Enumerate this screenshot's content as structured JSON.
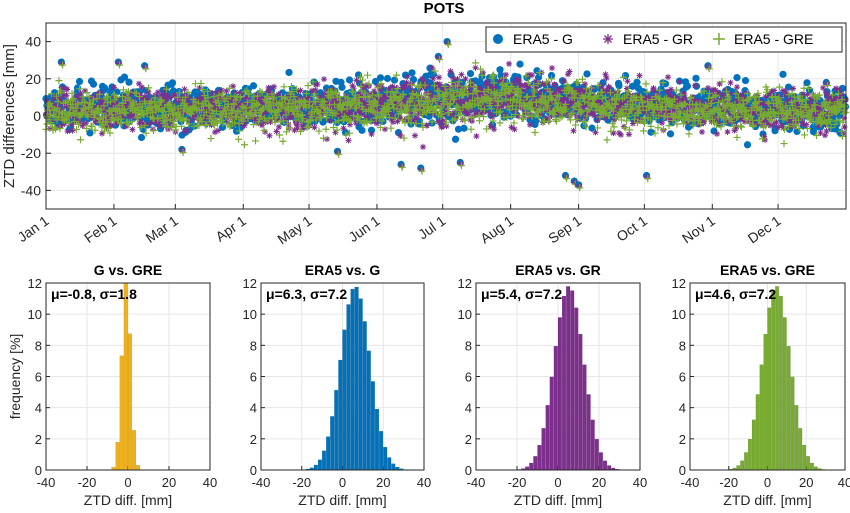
{
  "title": "POTS",
  "colors": {
    "G": "#0072BD",
    "GR": "#7E2F8E",
    "GRE": "#77AC30",
    "G_vs_GRE": "#EDB120",
    "axis": "#262626",
    "grid": "#e6e6e6"
  },
  "chart_data": [
    {
      "type": "scatter",
      "title": "POTS",
      "ylabel": "ZTD differences [mm]",
      "xlabel": "",
      "ylim": [
        -50,
        50
      ],
      "yticks": [
        -40,
        -20,
        0,
        20,
        40
      ],
      "xlim": [
        0,
        365
      ],
      "xticks": [
        {
          "label": "Jan 1",
          "day": 0
        },
        {
          "label": "Feb 1",
          "day": 31
        },
        {
          "label": "Mar 1",
          "day": 59
        },
        {
          "label": "Apr 1",
          "day": 90
        },
        {
          "label": "May 1",
          "day": 120
        },
        {
          "label": "Jun 1",
          "day": 151
        },
        {
          "label": "Jul 1",
          "day": 181
        },
        {
          "label": "Aug 1",
          "day": 212
        },
        {
          "label": "Sep 1",
          "day": 243
        },
        {
          "label": "Oct 1",
          "day": 273
        },
        {
          "label": "Nov 1",
          "day": 304
        },
        {
          "label": "Dec 1",
          "day": 334
        }
      ],
      "grid": true,
      "legend_position": "top-right",
      "series": [
        {
          "name": "ERA5 - G",
          "marker": "circle",
          "color": "#0072BD",
          "mean": 6.3,
          "std": 7.2
        },
        {
          "name": "ERA5 - GR",
          "marker": "asterisk",
          "color": "#7E2F8E",
          "mean": 5.4,
          "std": 7.2
        },
        {
          "name": "ERA5 - GRE",
          "marker": "plus",
          "color": "#77AC30",
          "mean": 4.6,
          "std": 7.2
        }
      ],
      "extremes": [
        {
          "day": 7,
          "y": 29
        },
        {
          "day": 33,
          "y": 29
        },
        {
          "day": 45,
          "y": 27
        },
        {
          "day": 62,
          "y": -18
        },
        {
          "day": 133,
          "y": -19
        },
        {
          "day": 162,
          "y": -26
        },
        {
          "day": 171,
          "y": -28
        },
        {
          "day": 179,
          "y": 32
        },
        {
          "day": 183,
          "y": 40
        },
        {
          "day": 189,
          "y": -25
        },
        {
          "day": 237,
          "y": -32
        },
        {
          "day": 241,
          "y": -35
        },
        {
          "day": 243,
          "y": -37
        },
        {
          "day": 274,
          "y": -32
        },
        {
          "day": 302,
          "y": 27
        },
        {
          "day": 356,
          "y": 18
        }
      ]
    },
    {
      "type": "bar",
      "title": "G vs. GRE",
      "annotation": "μ=-0.8, σ=1.8",
      "mean": -0.8,
      "std": 1.8,
      "color": "#EDB120",
      "xlabel": "ZTD diff. [mm]",
      "ylabel": "frequency [%]",
      "xlim": [
        -40,
        40
      ],
      "ylim": [
        0,
        12
      ],
      "xticks": [
        -40,
        -20,
        0,
        20,
        40
      ],
      "yticks": [
        0,
        2,
        4,
        6,
        8,
        10,
        12
      ],
      "bin_width": 2
    },
    {
      "type": "bar",
      "title": "ERA5 vs. G",
      "annotation": "μ=6.3, σ=7.2",
      "mean": 6.3,
      "std": 7.2,
      "color": "#0072BD",
      "xlabel": "ZTD diff. [mm]",
      "xlim": [
        -40,
        40
      ],
      "ylim": [
        0,
        12
      ],
      "xticks": [
        -40,
        -20,
        0,
        20,
        40
      ],
      "yticks": [
        0,
        2,
        4,
        6,
        8,
        10,
        12
      ],
      "bin_width": 2
    },
    {
      "type": "bar",
      "title": "ERA5 vs. GR",
      "annotation": "μ=5.4, σ=7.2",
      "mean": 5.4,
      "std": 7.2,
      "color": "#7E2F8E",
      "xlabel": "ZTD diff. [mm]",
      "xlim": [
        -40,
        40
      ],
      "ylim": [
        0,
        12
      ],
      "xticks": [
        -40,
        -20,
        0,
        20,
        40
      ],
      "yticks": [
        0,
        2,
        4,
        6,
        8,
        10,
        12
      ],
      "bin_width": 2
    },
    {
      "type": "bar",
      "title": "ERA5 vs. GRE",
      "annotation": "μ=4.6, σ=7.2",
      "mean": 4.6,
      "std": 7.2,
      "color": "#77AC30",
      "xlabel": "ZTD diff. [mm]",
      "xlim": [
        -40,
        40
      ],
      "ylim": [
        0,
        12
      ],
      "xticks": [
        -40,
        -20,
        0,
        20,
        40
      ],
      "yticks": [
        0,
        2,
        4,
        6,
        8,
        10,
        12
      ],
      "bin_width": 2
    }
  ]
}
